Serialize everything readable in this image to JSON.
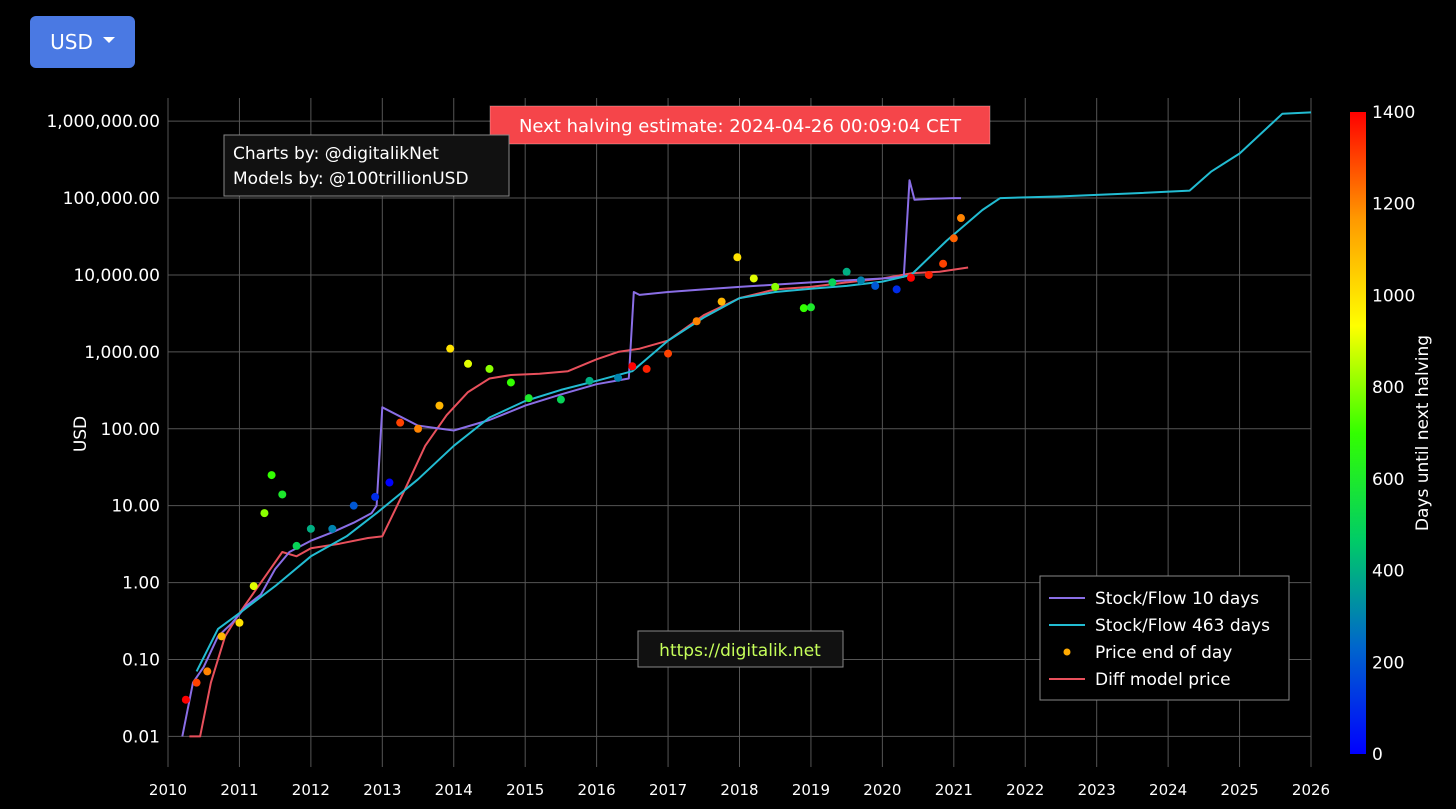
{
  "currency_selector": {
    "label": "USD"
  },
  "chart_data": {
    "type": "scatter",
    "ylabel": "USD",
    "y_scale": "log",
    "ylim": [
      0.004,
      2000000
    ],
    "xlim": [
      2010,
      2026
    ],
    "x_ticks": [
      "2010",
      "2011",
      "2012",
      "2013",
      "2014",
      "2015",
      "2016",
      "2017",
      "2018",
      "2019",
      "2020",
      "2021",
      "2022",
      "2023",
      "2024",
      "2025",
      "2026"
    ],
    "y_ticks": [
      {
        "value": 0.01,
        "label": "0.01"
      },
      {
        "value": 0.1,
        "label": "0.10"
      },
      {
        "value": 1,
        "label": "1.00"
      },
      {
        "value": 10,
        "label": "10.00"
      },
      {
        "value": 100,
        "label": "100.00"
      },
      {
        "value": 1000,
        "label": "1,000.00"
      },
      {
        "value": 10000,
        "label": "10,000.00"
      },
      {
        "value": 100000,
        "label": "100,000.00"
      },
      {
        "value": 1000000,
        "label": "1,000,000.00"
      }
    ],
    "colorbar": {
      "title": "Days until next halving",
      "range": [
        0,
        1400
      ],
      "ticks": [
        "0",
        "200",
        "400",
        "600",
        "800",
        "1000",
        "1200",
        "1400"
      ],
      "colors": [
        "#0000ff",
        "#0066cc",
        "#00cc66",
        "#33ff00",
        "#ffff00",
        "#ff9900",
        "#ff0000"
      ]
    },
    "annotations": {
      "halving_estimate": "Next halving estimate: 2024-04-26 00:09:04 CET",
      "credits_line1": "Charts by: @digitalikNet",
      "credits_line2": "Models by: @100trillionUSD",
      "website": "https://digitalik.net"
    },
    "legend_position": "bottom-right",
    "grid": true,
    "series": [
      {
        "name": "Stock/Flow 10 days",
        "type": "line",
        "color": "#8a6ee6",
        "x": [
          2010.2,
          2010.35,
          2010.5,
          2010.7,
          2010.9,
          2011.1,
          2011.3,
          2011.5,
          2011.7,
          2012.0,
          2012.3,
          2012.6,
          2012.85,
          2012.92,
          2013.0,
          2013.5,
          2014.0,
          2014.5,
          2015.0,
          2015.5,
          2016.0,
          2016.45,
          2016.52,
          2016.6,
          2017.0,
          2017.5,
          2018.0,
          2018.5,
          2019.0,
          2019.5,
          2020.0,
          2020.3,
          2020.38,
          2020.45,
          2020.7,
          2021.0,
          2021.1
        ],
        "y": [
          0.01,
          0.05,
          0.08,
          0.2,
          0.3,
          0.5,
          0.7,
          1.5,
          2.5,
          3.5,
          4.5,
          6,
          8,
          10,
          190,
          110,
          95,
          130,
          200,
          280,
          380,
          450,
          6000,
          5500,
          6000,
          6500,
          7000,
          7500,
          8000,
          8500,
          9000,
          9500,
          170000,
          95000,
          98000,
          100000,
          100000
        ]
      },
      {
        "name": "Stock/Flow 463 days",
        "type": "line",
        "color": "#22bcd2",
        "x": [
          2010.4,
          2010.7,
          2011.0,
          2011.5,
          2012.0,
          2012.5,
          2012.92,
          2013.5,
          2014.0,
          2014.5,
          2015.0,
          2015.5,
          2016.0,
          2016.5,
          2017.0,
          2017.5,
          2018.0,
          2018.5,
          2019.0,
          2019.5,
          2020.0,
          2020.4,
          2020.9,
          2021.4,
          2021.65,
          2022.5,
          2023.5,
          2024.3,
          2024.6,
          2025.0,
          2025.6,
          2026.0
        ],
        "y": [
          0.07,
          0.25,
          0.4,
          0.9,
          2.2,
          4,
          8,
          22,
          60,
          140,
          230,
          320,
          420,
          560,
          1400,
          2800,
          5000,
          6000,
          6600,
          7200,
          8200,
          10000,
          28000,
          70000,
          100000,
          105000,
          115000,
          125000,
          220000,
          380000,
          1250000,
          1300000
        ]
      },
      {
        "name": "Price end of day",
        "type": "scatter",
        "color": "#ffaa00",
        "x": [
          2010.25,
          2010.4,
          2010.55,
          2010.75,
          2011.0,
          2011.2,
          2011.35,
          2011.45,
          2011.6,
          2011.8,
          2012.0,
          2012.3,
          2012.6,
          2012.9,
          2013.1,
          2013.25,
          2013.5,
          2013.8,
          2013.95,
          2014.2,
          2014.5,
          2014.8,
          2015.05,
          2015.5,
          2015.9,
          2016.3,
          2016.5,
          2016.7,
          2017.0,
          2017.4,
          2017.75,
          2017.97,
          2018.2,
          2018.5,
          2018.9,
          2019.0,
          2019.3,
          2019.5,
          2019.7,
          2019.9,
          2020.2,
          2020.4,
          2020.65,
          2020.85,
          2021.0,
          2021.1
        ],
        "y": [
          0.03,
          0.05,
          0.07,
          0.2,
          0.3,
          0.9,
          8,
          25,
          14,
          3,
          5,
          5,
          10,
          13,
          20,
          120,
          100,
          200,
          1100,
          700,
          600,
          400,
          250,
          240,
          420,
          460,
          650,
          600,
          950,
          2500,
          4500,
          17000,
          9000,
          7000,
          3700,
          3800,
          8000,
          11000,
          8500,
          7200,
          6500,
          9200,
          10000,
          14000,
          30000,
          55000
        ],
        "days_until_halving": [
          1400,
          1300,
          1200,
          1100,
          1000,
          900,
          800,
          700,
          600,
          500,
          400,
          300,
          200,
          100,
          0,
          1300,
          1200,
          1100,
          1000,
          900,
          800,
          700,
          600,
          500,
          400,
          300,
          1400,
          1350,
          1300,
          1200,
          1100,
          1000,
          900,
          800,
          700,
          600,
          500,
          400,
          300,
          200,
          100,
          1400,
          1350,
          1300,
          1250,
          1200
        ]
      },
      {
        "name": "Diff model price",
        "type": "line",
        "color": "#e8505c",
        "x": [
          2010.3,
          2010.45,
          2010.6,
          2010.8,
          2011.0,
          2011.3,
          2011.6,
          2011.8,
          2012.0,
          2012.4,
          2012.8,
          2013.0,
          2013.3,
          2013.6,
          2013.9,
          2014.2,
          2014.5,
          2014.8,
          2015.2,
          2015.6,
          2016.0,
          2016.3,
          2016.6,
          2017.0,
          2017.5,
          2018.0,
          2018.5,
          2019.0,
          2019.5,
          2020.0,
          2020.4,
          2020.8,
          2021.2
        ],
        "y": [
          0.01,
          0.01,
          0.05,
          0.2,
          0.4,
          1,
          2.5,
          2.2,
          2.8,
          3.2,
          3.8,
          4,
          15,
          60,
          150,
          300,
          450,
          500,
          520,
          560,
          800,
          1000,
          1100,
          1400,
          3000,
          5000,
          6500,
          7000,
          8000,
          9000,
          10500,
          11000,
          12500
        ]
      }
    ]
  }
}
